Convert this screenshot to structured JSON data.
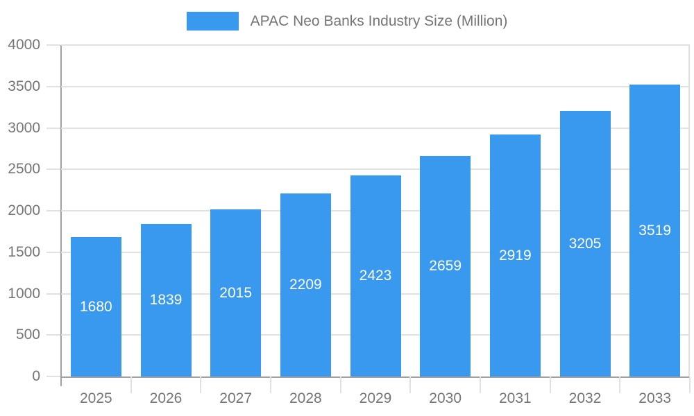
{
  "legend": {
    "label": "APAC Neo Banks Industry Size (Million)"
  },
  "chart_data": {
    "type": "bar",
    "title": "APAC Neo Banks Industry Size (Million)",
    "categories": [
      "2025",
      "2026",
      "2027",
      "2028",
      "2029",
      "2030",
      "2031",
      "2032",
      "2033"
    ],
    "series": [
      {
        "name": "APAC Neo Banks Industry Size (Million)",
        "values": [
          1680,
          1839,
          2015,
          2209,
          2423,
          2659,
          2919,
          3205,
          3519
        ]
      }
    ],
    "value_labels_position": "inside-center",
    "xlabel": "",
    "ylabel": "",
    "ylim": [
      0,
      4000
    ],
    "yticks": [
      0,
      500,
      1000,
      1500,
      2000,
      2500,
      3000,
      3500,
      4000
    ],
    "grid": true,
    "legend_position": "top"
  },
  "colors": {
    "bar": "#3899EF",
    "grid_line": "#E1E1E1",
    "axis_line": "#A1A1A1",
    "axis_text": "#757575",
    "bar_value_text": "#FFFFFF",
    "background": "#FFFFFF"
  }
}
